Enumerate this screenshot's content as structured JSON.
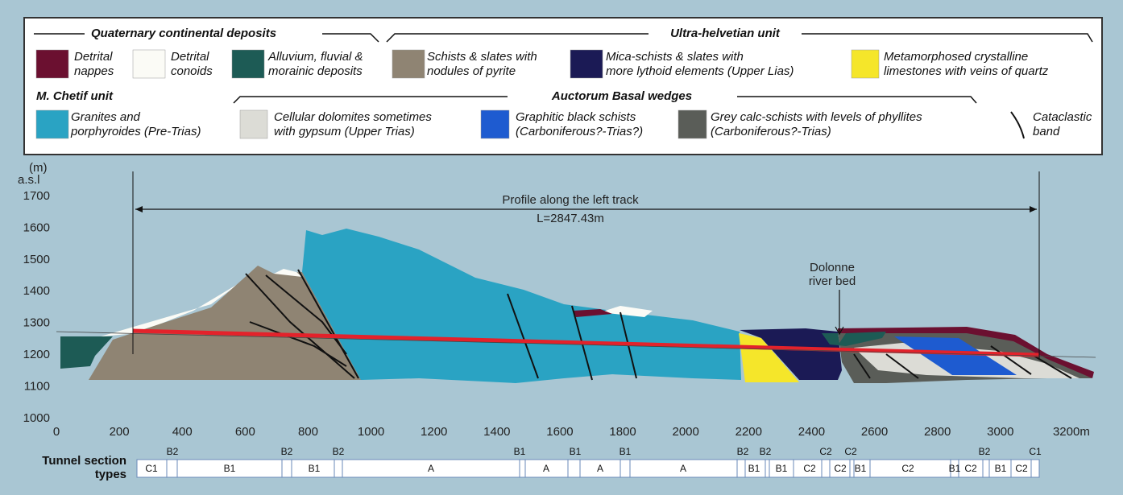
{
  "legend": {
    "headers": [
      "Quaternary continental deposits",
      "Ultra-helvetian unit",
      "M. Chetif unit",
      "Auctorum Basal wedges"
    ],
    "items": [
      {
        "lines": [
          "Detrital",
          "nappes"
        ],
        "color": "#6b1030"
      },
      {
        "lines": [
          "Detrital",
          "conoids"
        ],
        "color": "#fbfbf6"
      },
      {
        "lines": [
          "Alluvium, fluvial &",
          "morainic deposits"
        ],
        "color": "#1d5b55"
      },
      {
        "lines": [
          "Schists & slates with",
          "nodules of pyrite"
        ],
        "color": "#8f8473"
      },
      {
        "lines": [
          "Mica-schists & slates with",
          "more lythoid elements (Upper Lias)"
        ],
        "color": "#1b1a55"
      },
      {
        "lines": [
          "Metamorphosed crystalline",
          "limestones with veins of quartz"
        ],
        "color": "#f5e62a"
      },
      {
        "lines": [
          "Granites and",
          "porphyroides (Pre-Trias)"
        ],
        "color": "#2aa3c3"
      },
      {
        "lines": [
          "Cellular dolomites sometimes",
          "with gypsum (Upper Trias)"
        ],
        "color": "#dcdcd6"
      },
      {
        "lines": [
          "Graphitic black schists",
          "(Carboniferous?-Trias?)"
        ],
        "color": "#1e5bd0"
      },
      {
        "lines": [
          "Grey calc-schists with levels of phyllites",
          "(Carboniferous?-Trias)"
        ],
        "color": "#5a5d58"
      },
      {
        "lines": [
          "Cataclastic",
          "band"
        ]
      }
    ]
  },
  "section": {
    "unit_lines": [
      "(m)",
      "a.s.l"
    ],
    "yticks": [
      "1700",
      "1600",
      "1500",
      "1400",
      "1300",
      "1200",
      "1100",
      "1000"
    ],
    "xticks": [
      "0",
      "200",
      "400",
      "600",
      "800",
      "1000",
      "1200",
      "1400",
      "1600",
      "1800",
      "2000",
      "2200",
      "2400",
      "2600",
      "2800",
      "3000",
      "3200m"
    ],
    "profile_label": "Profile along the left track",
    "length_label": "L=2847.43m",
    "annotation_lines": [
      "Dolonne",
      "river bed"
    ]
  },
  "tunnel": {
    "title_lines": [
      "Tunnel section",
      "types"
    ],
    "inner_labels": [
      "C1",
      "B1",
      "B1",
      "A",
      "A",
      "A",
      "A",
      "B1",
      "B1",
      "C2",
      "C2",
      "B1",
      "C2",
      "B1",
      "C2",
      "B1",
      "C2"
    ],
    "top_labels": [
      "B2",
      "B2",
      "B2",
      "B1",
      "B1",
      "B1",
      "B2",
      "B2",
      "C2",
      "C2",
      "B2",
      "C1"
    ]
  }
}
